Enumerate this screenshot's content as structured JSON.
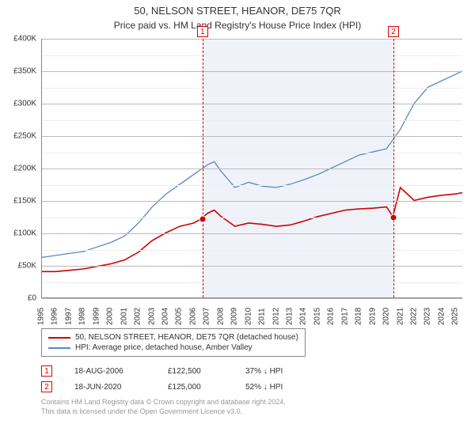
{
  "title": "50, NELSON STREET, HEANOR, DE75 7QR",
  "subtitle": "Price paid vs. HM Land Registry's House Price Index (HPI)",
  "chart": {
    "type": "line",
    "background_color": "#ffffff",
    "grid_major_color": "#bbbbbb",
    "grid_minor_color": "#eeeeee",
    "axis_color": "#888888",
    "y_axis": {
      "min": 0,
      "max": 400000,
      "tick_step": 50000,
      "labels": [
        "£0",
        "£50K",
        "£100K",
        "£150K",
        "£200K",
        "£250K",
        "£300K",
        "£350K",
        "£400K"
      ],
      "label_fontsize": 10
    },
    "x_axis": {
      "min": 1995,
      "max": 2025.5,
      "labels": [
        "1995",
        "1996",
        "1997",
        "1998",
        "1999",
        "2000",
        "2001",
        "2002",
        "2003",
        "2004",
        "2005",
        "2006",
        "2007",
        "2008",
        "2009",
        "2010",
        "2011",
        "2012",
        "2013",
        "2014",
        "2015",
        "2016",
        "2017",
        "2018",
        "2019",
        "2020",
        "2021",
        "2022",
        "2023",
        "2024",
        "2025"
      ],
      "label_fontsize": 10
    },
    "shaded_region": {
      "x_start": 2006.63,
      "x_end": 2020.46,
      "fill": "rgba(130,160,210,0.13)"
    },
    "event_lines": [
      {
        "id": "1",
        "x": 2006.63,
        "color": "#d00000",
        "dash": "3,3"
      },
      {
        "id": "2",
        "x": 2020.46,
        "color": "#d00000",
        "dash": "3,3"
      }
    ],
    "series": [
      {
        "name": "price_paid",
        "label": "50, NELSON STREET, HEANOR, DE75 7QR (detached house)",
        "color": "#d00000",
        "line_width": 1.6,
        "data_x": [
          1995,
          1996,
          1997,
          1998,
          1999,
          2000,
          2001,
          2002,
          2003,
          2004,
          2005,
          2006,
          2006.63,
          2007,
          2007.5,
          2008,
          2009,
          2010,
          2011,
          2012,
          2013,
          2014,
          2015,
          2016,
          2017,
          2018,
          2019,
          2020,
          2020.46,
          2021,
          2022,
          2023,
          2024,
          2025,
          2025.5
        ],
        "data_y": [
          40000,
          40000,
          42000,
          44000,
          48000,
          52000,
          58000,
          70000,
          88000,
          100000,
          110000,
          115000,
          122500,
          130000,
          135000,
          125000,
          110000,
          115000,
          113000,
          110000,
          112000,
          118000,
          125000,
          130000,
          135000,
          137000,
          138000,
          140000,
          125000,
          170000,
          150000,
          155000,
          158000,
          160000,
          162000
        ]
      },
      {
        "name": "hpi",
        "label": "HPI: Average price, detached house, Amber Valley",
        "color": "#5b86c5",
        "line_width": 1.3,
        "data_x": [
          1995,
          1996,
          1997,
          1998,
          1999,
          2000,
          2001,
          2002,
          2003,
          2004,
          2005,
          2006,
          2007,
          2007.5,
          2008,
          2009,
          2010,
          2011,
          2012,
          2013,
          2014,
          2015,
          2016,
          2017,
          2018,
          2019,
          2020,
          2021,
          2022,
          2023,
          2024,
          2025,
          2025.5
        ],
        "data_y": [
          62000,
          65000,
          68000,
          71000,
          78000,
          85000,
          95000,
          115000,
          140000,
          160000,
          175000,
          190000,
          205000,
          210000,
          195000,
          170000,
          178000,
          172000,
          170000,
          175000,
          182000,
          190000,
          200000,
          210000,
          220000,
          225000,
          230000,
          260000,
          300000,
          325000,
          335000,
          345000,
          350000
        ]
      }
    ],
    "sale_markers": [
      {
        "x": 2006.63,
        "y": 122500,
        "color": "#d00000"
      },
      {
        "x": 2020.46,
        "y": 125000,
        "color": "#d00000"
      }
    ]
  },
  "legend": {
    "border_color": "#888888",
    "items": [
      {
        "color": "#d00000",
        "label": "50, NELSON STREET, HEANOR, DE75 7QR (detached house)"
      },
      {
        "color": "#5b86c5",
        "label": "HPI: Average price, detached house, Amber Valley"
      }
    ]
  },
  "events": [
    {
      "id": "1",
      "date": "18-AUG-2006",
      "price": "£122,500",
      "hpi_diff": "37% ↓ HPI"
    },
    {
      "id": "2",
      "date": "18-JUN-2020",
      "price": "£125,000",
      "hpi_diff": "52% ↓ HPI"
    }
  ],
  "attribution": {
    "line1": "Contains HM Land Registry data © Crown copyright and database right 2024.",
    "line2": "This data is licensed under the Open Government Licence v3.0."
  }
}
